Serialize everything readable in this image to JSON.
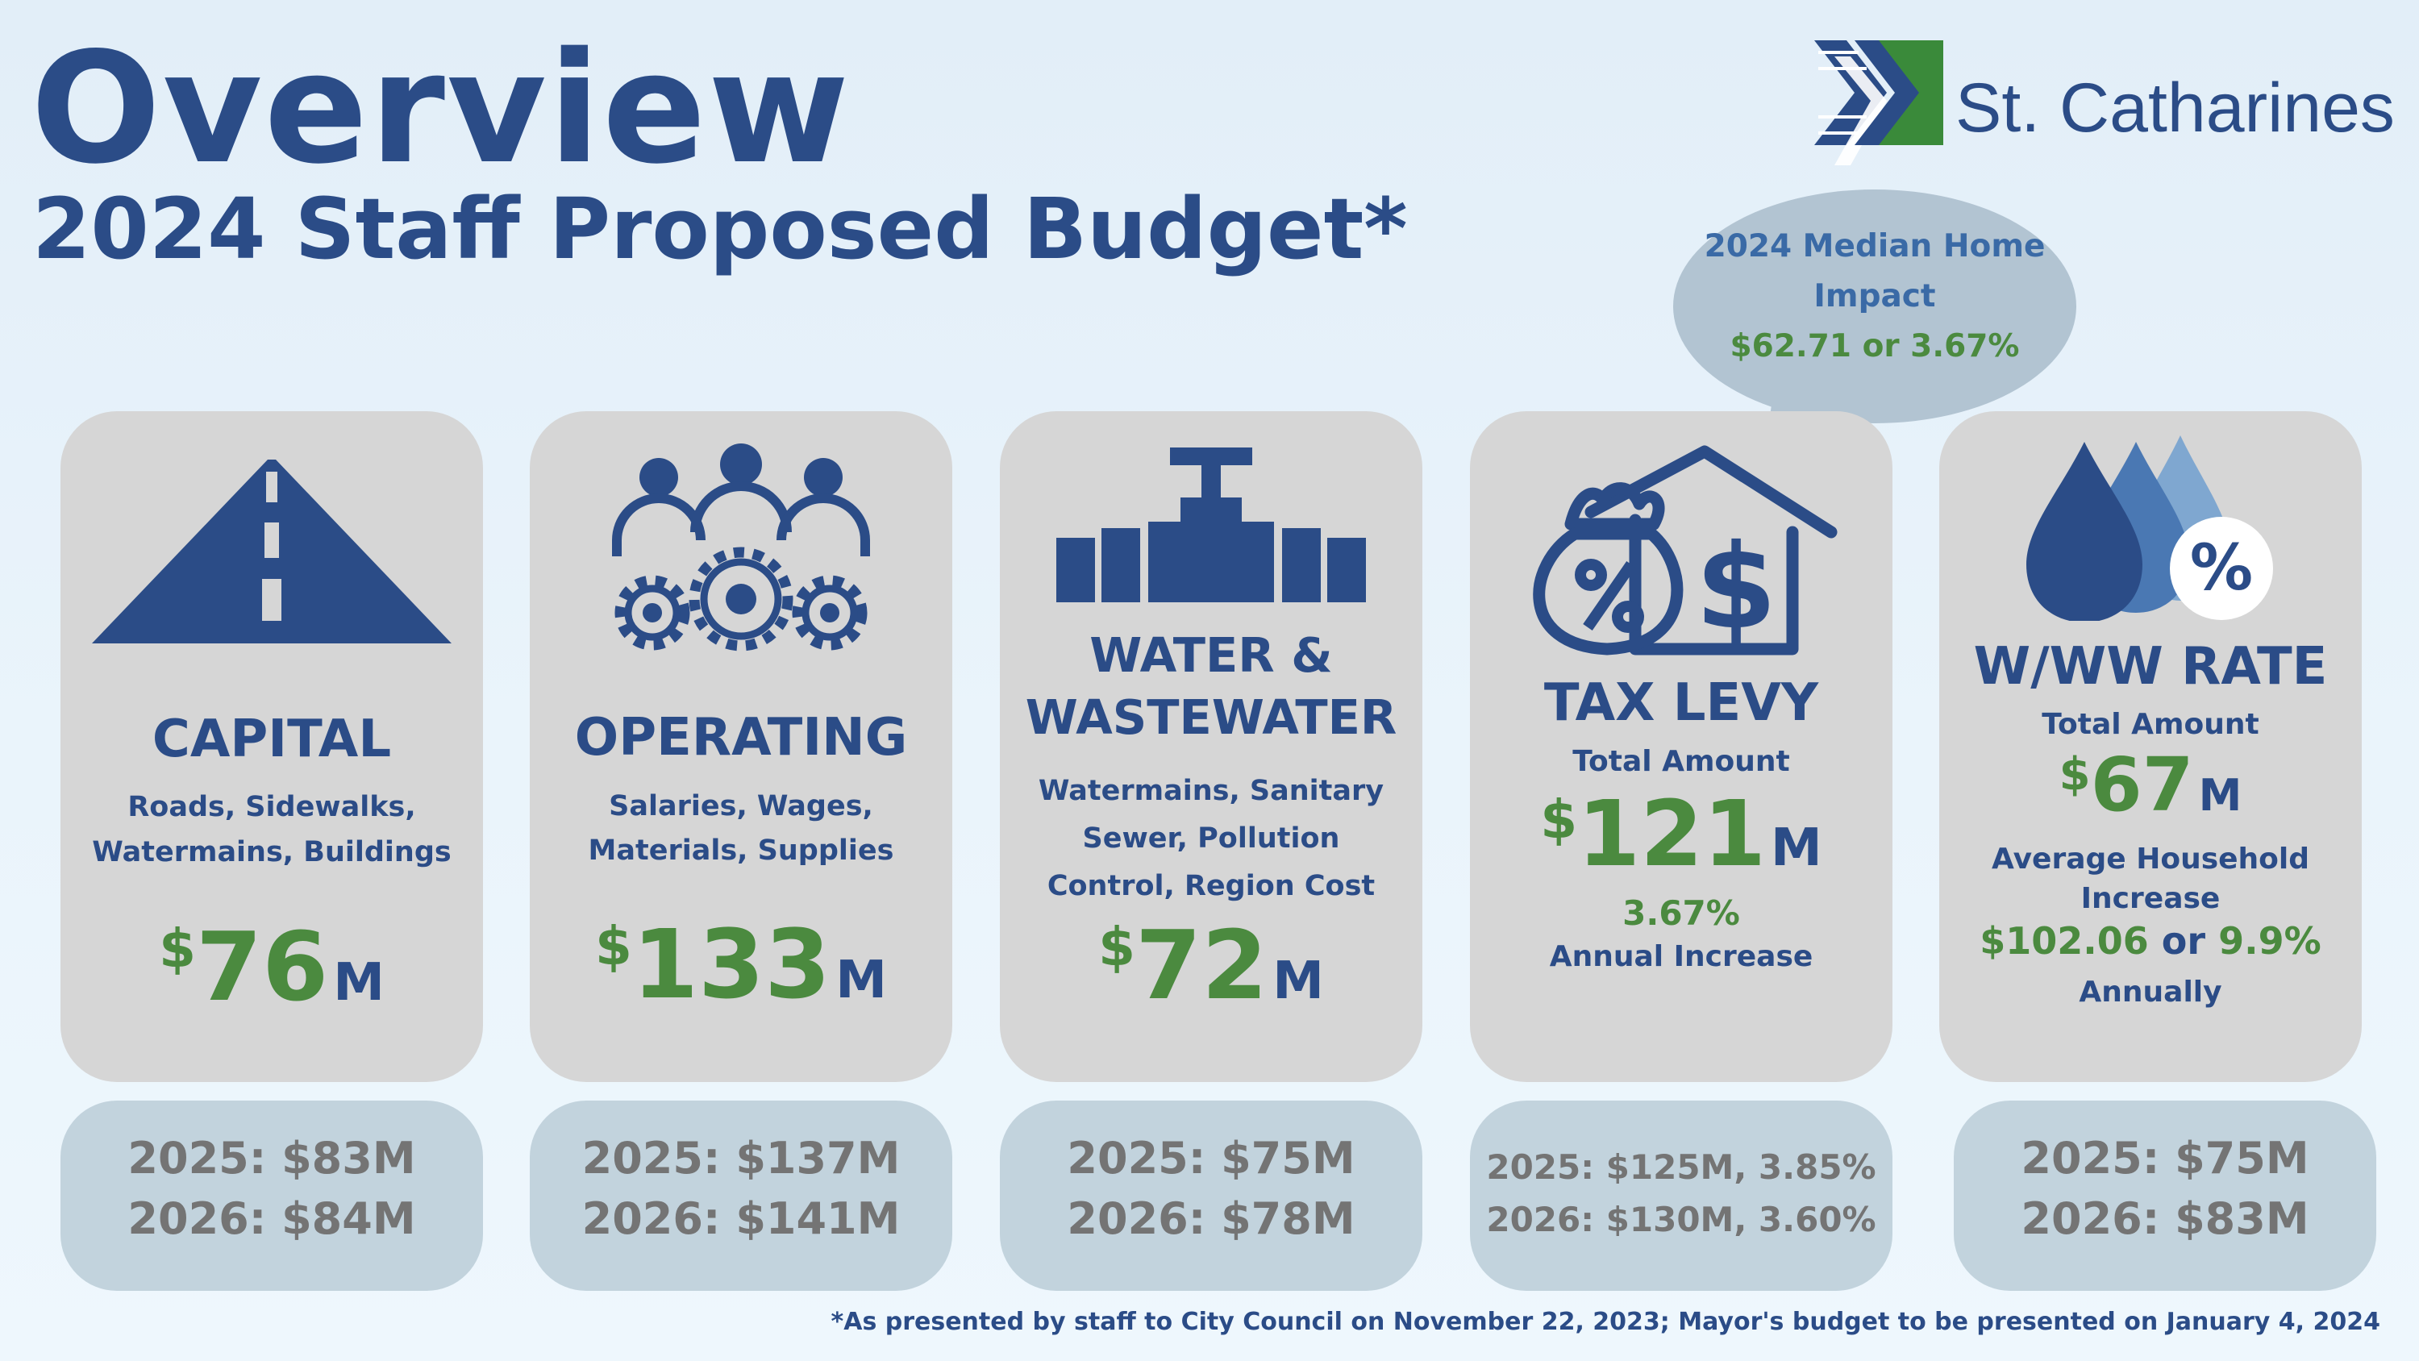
{
  "header": {
    "title": "Overview",
    "subtitle": "2024 Staff Proposed Budget*",
    "logo_text": "St. Catharines"
  },
  "bubble": {
    "line1": "2024 Median Home",
    "line2": "Impact",
    "line3": "$62.71 or 3.67%"
  },
  "cards": {
    "capital": {
      "icon": "road-icon",
      "title": "CAPITAL",
      "desc1": "Roads, Sidewalks,",
      "desc2": "Watermains, Buildings",
      "currency": "$",
      "amount": "76",
      "unit": "M",
      "y2025": "2025: $83M",
      "y2026": "2026: $84M"
    },
    "operating": {
      "icon": "people-gears-icon",
      "title": "OPERATING",
      "desc1": "Salaries, Wages,",
      "desc2": "Materials, Supplies",
      "currency": "$",
      "amount": "133",
      "unit": "M",
      "y2025": "2025: $137M",
      "y2026": "2026: $141M"
    },
    "water": {
      "icon": "pipe-valve-icon",
      "title1": "WATER &",
      "title2": "WASTEWATER",
      "desc1": "Watermains, Sanitary",
      "desc2": "Sewer, Pollution",
      "desc3": "Control, Region Cost",
      "currency": "$",
      "amount": "72",
      "unit": "M",
      "y2025": "2025: $75M",
      "y2026": "2026: $78M"
    },
    "taxlevy": {
      "icon": "money-bag-house-icon",
      "title": "TAX LEVY",
      "total_label": "Total Amount",
      "currency": "$",
      "amount": "121",
      "unit": "M",
      "pct": "3.67%",
      "pct_label": "Annual Increase",
      "y2025": "2025: $125M, 3.85%",
      "y2026": "2026: $130M, 3.60%"
    },
    "wwrate": {
      "icon": "water-drops-percent-icon",
      "badge": "%",
      "title": "W/WW RATE",
      "total_label": "Total Amount",
      "currency": "$",
      "amount": "67",
      "unit": "M",
      "avg_label1": "Average Household",
      "avg_label2": "Increase",
      "avg_amount": "$102.06",
      "avg_or": " or ",
      "avg_pct": "9.9%",
      "annually": "Annually",
      "y2025": "2025: $75M",
      "y2026": "2026: $83M"
    }
  },
  "footnote": "*As presented by staff to City Council on November 22, 2023; Mayor's budget to be presented on January 4, 2024",
  "colors": {
    "navy": "#2b4c87",
    "green": "#4b8a3f",
    "card_grey": "#d6d6d6",
    "bottom_blue": "#c2d3dd",
    "logo_green": "#3a8a3a"
  }
}
